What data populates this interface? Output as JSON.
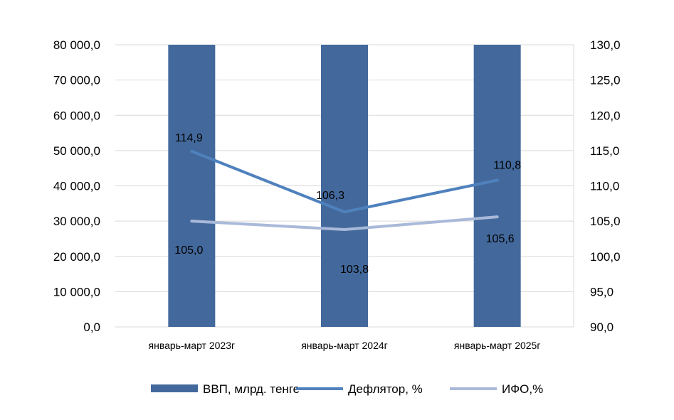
{
  "chart_data": {
    "type": "bar",
    "categories": [
      "январь-март 2023г",
      "январь-март 2024г",
      "январь-март 2025г"
    ],
    "series": [
      {
        "name": "ВВП, млрд. тенге",
        "type": "bar",
        "axis": "left",
        "values": [
          85000,
          85000,
          85000
        ],
        "color": "#43699c"
      },
      {
        "name": "Дефлятор, %",
        "type": "line",
        "axis": "right",
        "values": [
          114.9,
          106.3,
          110.8
        ],
        "labels": [
          "114,9",
          "106,3",
          "110,8"
        ],
        "color": "#4f81bd"
      },
      {
        "name": "ИФО,%",
        "type": "line",
        "axis": "right",
        "values": [
          105.0,
          103.8,
          105.6
        ],
        "labels": [
          "105,0",
          "103,8",
          "105,6"
        ],
        "color": "#a9b9d9"
      }
    ],
    "y_left": {
      "lim": [
        0,
        80000
      ],
      "ticks": [
        "0,0",
        "10 000,0",
        "20 000,0",
        "30 000,0",
        "40 000,0",
        "50 000,0",
        "60 000,0",
        "70 000,0",
        "80 000,0"
      ]
    },
    "y_right": {
      "lim": [
        90,
        130
      ],
      "ticks": [
        "90,0",
        "95,0",
        "100,0",
        "105,0",
        "110,0",
        "115,0",
        "120,0",
        "125,0",
        "130,0"
      ]
    },
    "grid": true,
    "legend": "bottom",
    "title": "",
    "xlabel": "",
    "ylabel": ""
  }
}
